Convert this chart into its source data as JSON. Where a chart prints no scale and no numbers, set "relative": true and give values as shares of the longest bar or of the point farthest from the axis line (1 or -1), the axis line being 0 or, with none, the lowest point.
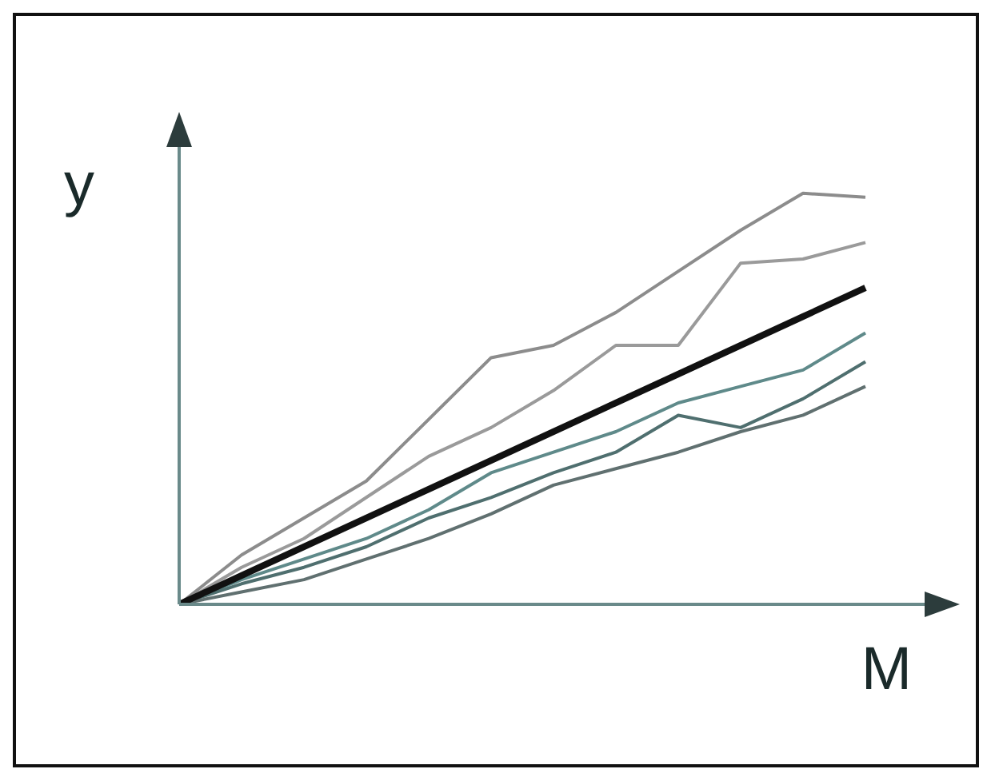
{
  "chart_data": {
    "type": "line",
    "relative": true,
    "xlabel": "M",
    "ylabel": "y",
    "grid": false,
    "legend": false,
    "marker": "none",
    "line_style": "solid",
    "categories": [
      null,
      null,
      null,
      null,
      null,
      null,
      null,
      null,
      null,
      null,
      null,
      null
    ],
    "series": [
      {
        "color": "#8c8c8c",
        "values": [
          0,
          0.12,
          0.21,
          0.3,
          0.45,
          0.6,
          0.63,
          0.71,
          0.81,
          0.91,
          1.0,
          0.99
        ]
      },
      {
        "color": "#9a9a9a",
        "values": [
          0,
          0.09,
          0.16,
          0.26,
          0.36,
          0.43,
          0.52,
          0.63,
          0.63,
          0.83,
          0.84,
          0.88
        ]
      },
      {
        "color": "#5f8a8a",
        "values": [
          0,
          0.06,
          0.11,
          0.16,
          0.23,
          0.32,
          0.37,
          0.42,
          0.49,
          0.53,
          0.57,
          0.66
        ]
      },
      {
        "color": "#4f6f6f",
        "values": [
          0,
          0.05,
          0.09,
          0.14,
          0.21,
          0.26,
          0.32,
          0.37,
          0.46,
          0.43,
          0.5,
          0.59
        ]
      },
      {
        "color": "#607070",
        "values": [
          0,
          0.03,
          0.06,
          0.11,
          0.16,
          0.22,
          0.29,
          0.33,
          0.37,
          0.42,
          0.46,
          0.53
        ]
      },
      {
        "color": "#111111",
        "values": [
          0,
          0.07,
          0.14,
          0.21,
          0.28,
          0.35,
          0.42,
          0.49,
          0.56,
          0.63,
          0.7,
          0.77
        ]
      }
    ]
  }
}
